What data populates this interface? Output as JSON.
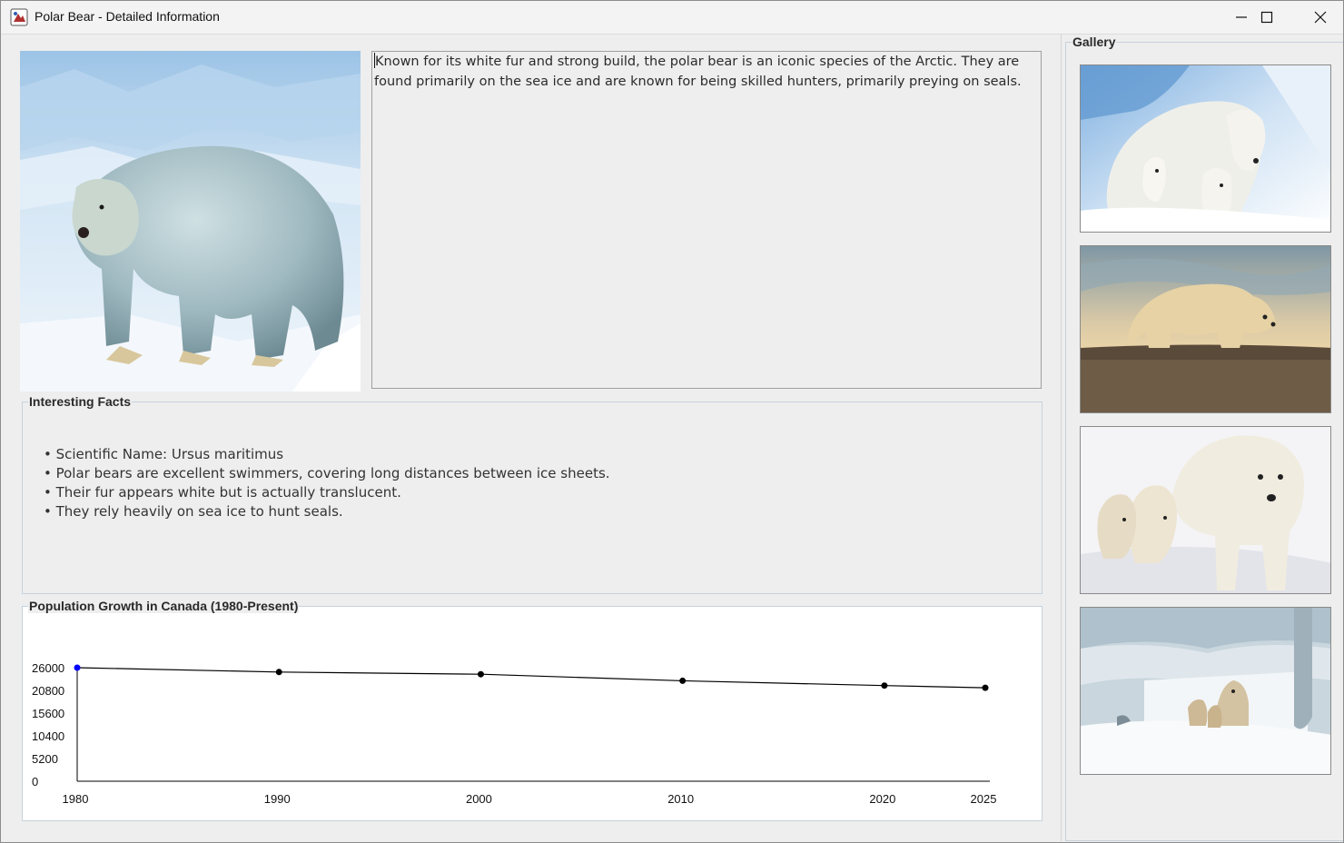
{
  "window": {
    "title": "Polar Bear - Detailed Information",
    "controls": [
      "minimize-icon",
      "maximize-icon",
      "close-icon"
    ]
  },
  "description": "Known for its white fur and strong build, the polar bear is an iconic species of the Arctic. They are found primarily on the sea ice and are known for being skilled hunters, primarily preying on seals.",
  "facts": {
    "title": "Interesting Facts",
    "items": [
      "• Scientific Name: Ursus maritimus",
      "• Polar bears are excellent swimmers, covering long distances between ice sheets.",
      "• Their fur appears white but is actually translucent.",
      "• They rely heavily on sea ice to hunt seals."
    ]
  },
  "chart": {
    "title": "Population Growth in Canada (1980-Present)"
  },
  "gallery": {
    "title": "Gallery",
    "images": [
      "polar-bear-mother-with-cubs",
      "polar-bear-on-tundra-at-sunset",
      "polar-bear-mother-walking-with-cubs",
      "polar-bear-family-in-snow-den"
    ]
  },
  "colors": {
    "background": "#eeeeee",
    "group_border": "#c6d2dc",
    "line": "#000000",
    "first_point": "#0000ff"
  },
  "chart_data": {
    "type": "line",
    "x": [
      1980,
      1990,
      2000,
      2010,
      2020,
      2025
    ],
    "values": [
      26000,
      25000,
      24500,
      23000,
      21900,
      21400
    ],
    "ytick_labels": [
      "0",
      "5200",
      "10400",
      "15600",
      "20800",
      "26000"
    ],
    "xtick_labels": [
      "1980",
      "1990",
      "2000",
      "2010",
      "2020",
      "2025"
    ],
    "ylim": [
      0,
      26000
    ],
    "grid": false,
    "legend": "none"
  }
}
